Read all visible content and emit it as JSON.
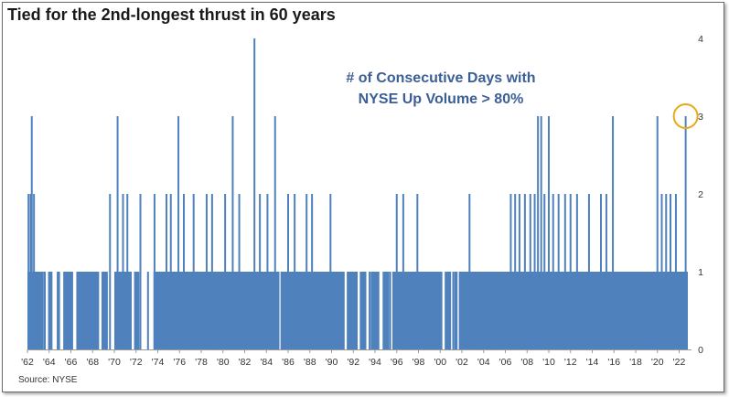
{
  "header": {
    "title": "Tied for the 2nd-longest thrust in 60 years"
  },
  "annotation": {
    "line1": "# of Consecutive Days with",
    "line2": "NYSE Up Volume > 80%"
  },
  "footer": {
    "source": "Source: NYSE"
  },
  "colors": {
    "bar": "#4f81bd",
    "highlight_circle": "#e8a917",
    "annotation_text": "#3b5f95"
  },
  "chart_data": {
    "type": "area",
    "title": "Tied for the 2nd-longest thrust in 60 years",
    "xlabel": "",
    "ylabel": "",
    "xlim": [
      1962,
      2022.8
    ],
    "ylim": [
      0,
      4
    ],
    "y_axis_side": "right",
    "grid": false,
    "xticks": [
      "'62",
      "'64",
      "'66",
      "'68",
      "'70",
      "'72",
      "'74",
      "'76",
      "'78",
      "'80",
      "'82",
      "'84",
      "'86",
      "'88",
      "'90",
      "'92",
      "'94",
      "'96",
      "'98",
      "'00",
      "'02",
      "'04",
      "'06",
      "'08",
      "'10",
      "'12",
      "'14",
      "'16",
      "'18",
      "'20",
      "'22"
    ],
    "xtick_years": [
      1962,
      1964,
      1966,
      1968,
      1970,
      1972,
      1974,
      1976,
      1978,
      1980,
      1982,
      1984,
      1986,
      1988,
      1990,
      1992,
      1994,
      1996,
      1998,
      2000,
      2002,
      2004,
      2006,
      2008,
      2010,
      2012,
      2014,
      2016,
      2018,
      2020,
      2022
    ],
    "yticks": [
      0,
      1,
      2,
      3,
      4
    ],
    "series": [
      {
        "points": [
          [
            1962.1,
            2
          ],
          [
            1962.3,
            2
          ],
          [
            1962.4,
            3
          ],
          [
            1962.6,
            2
          ],
          [
            1970.3,
            3
          ],
          [
            1975.9,
            3
          ],
          [
            1980.9,
            3
          ],
          [
            1982.9,
            4
          ],
          [
            1984.8,
            3
          ],
          [
            1989.9,
            2
          ],
          [
            1996.0,
            2
          ],
          [
            2002.7,
            2
          ],
          [
            2006.5,
            2
          ],
          [
            2009.0,
            3
          ],
          [
            2009.3,
            3
          ],
          [
            2010.0,
            3
          ],
          [
            2015.9,
            3
          ],
          [
            2020.0,
            3
          ],
          [
            2022.6,
            3
          ],
          [
            1963.0,
            1
          ],
          [
            1963.6,
            1
          ],
          [
            1964.2,
            1
          ],
          [
            1964.9,
            1
          ],
          [
            1965.4,
            1
          ],
          [
            1966.1,
            1
          ],
          [
            1966.8,
            1
          ],
          [
            1967.4,
            1
          ],
          [
            1968.2,
            1
          ],
          [
            1968.9,
            1
          ],
          [
            1969.6,
            2
          ],
          [
            1970.1,
            1
          ],
          [
            1970.8,
            2
          ],
          [
            1971.2,
            2
          ],
          [
            1971.9,
            1
          ],
          [
            1972.4,
            2
          ],
          [
            1973.1,
            1
          ],
          [
            1973.7,
            2
          ],
          [
            1974.3,
            1
          ],
          [
            1974.8,
            2
          ],
          [
            1975.2,
            2
          ],
          [
            1976.4,
            2
          ],
          [
            1977.3,
            2
          ],
          [
            1977.9,
            1
          ],
          [
            1978.5,
            2
          ],
          [
            1979.0,
            2
          ],
          [
            1979.6,
            1
          ],
          [
            1980.2,
            2
          ],
          [
            1981.5,
            2
          ],
          [
            1982.1,
            1
          ],
          [
            1983.4,
            2
          ],
          [
            1984.1,
            2
          ],
          [
            1985.5,
            1
          ],
          [
            1986.0,
            2
          ],
          [
            1986.6,
            2
          ],
          [
            1987.1,
            1
          ],
          [
            1987.7,
            2
          ],
          [
            1988.2,
            2
          ],
          [
            1988.7,
            1
          ],
          [
            1989.3,
            1
          ],
          [
            1990.6,
            1
          ],
          [
            1991.1,
            1
          ],
          [
            1991.6,
            1
          ],
          [
            1992.2,
            1
          ],
          [
            1992.9,
            1
          ],
          [
            1993.5,
            1
          ],
          [
            1994.1,
            1
          ],
          [
            1994.8,
            1
          ],
          [
            1995.4,
            1
          ],
          [
            1996.6,
            2
          ],
          [
            1997.3,
            1
          ],
          [
            1997.9,
            2
          ],
          [
            1998.5,
            1
          ],
          [
            1999.1,
            1
          ],
          [
            1999.8,
            1
          ],
          [
            2000.5,
            1
          ],
          [
            2001.2,
            1
          ],
          [
            2001.8,
            1
          ],
          [
            2003.3,
            1
          ],
          [
            2003.9,
            1
          ],
          [
            2004.6,
            1
          ],
          [
            2005.2,
            1
          ],
          [
            2005.8,
            1
          ],
          [
            2006.9,
            2
          ],
          [
            2007.3,
            2
          ],
          [
            2007.8,
            2
          ],
          [
            2008.3,
            2
          ],
          [
            2008.7,
            2
          ],
          [
            2009.6,
            2
          ],
          [
            2010.4,
            2
          ],
          [
            2010.9,
            2
          ],
          [
            2011.5,
            2
          ],
          [
            2012.0,
            2
          ],
          [
            2012.6,
            2
          ],
          [
            2013.1,
            1
          ],
          [
            2013.7,
            2
          ],
          [
            2014.3,
            1
          ],
          [
            2014.8,
            2
          ],
          [
            2015.3,
            2
          ],
          [
            2016.5,
            1
          ],
          [
            2017.1,
            1
          ],
          [
            2017.7,
            1
          ],
          [
            2018.3,
            1
          ],
          [
            2018.9,
            1
          ],
          [
            2019.5,
            1
          ],
          [
            2020.4,
            2
          ],
          [
            2020.8,
            2
          ],
          [
            2021.2,
            2
          ],
          [
            2021.7,
            2
          ],
          [
            2022.1,
            1
          ]
        ],
        "baseline_segments": [
          [
            1962.0,
            1963.5,
            1
          ],
          [
            1963.9,
            1964.3,
            1
          ],
          [
            1964.7,
            1965.0,
            1
          ],
          [
            1965.3,
            1966.2,
            1
          ],
          [
            1966.5,
            1968.6,
            1
          ],
          [
            1968.9,
            1969.4,
            1
          ],
          [
            1970.0,
            1971.6,
            1
          ],
          [
            1971.9,
            1972.3,
            1
          ],
          [
            1973.6,
            1985.2,
            1
          ],
          [
            1985.3,
            1991.2,
            1
          ],
          [
            1991.4,
            1992.4,
            1
          ],
          [
            1992.6,
            1993.2,
            1
          ],
          [
            1993.6,
            1994.4,
            1
          ],
          [
            1994.7,
            1995.3,
            1
          ],
          [
            1995.6,
            2000.2,
            1
          ],
          [
            2000.5,
            2001.0,
            1
          ],
          [
            2001.3,
            2001.6,
            1
          ],
          [
            2001.8,
            2022.8,
            1
          ]
        ]
      }
    ]
  }
}
